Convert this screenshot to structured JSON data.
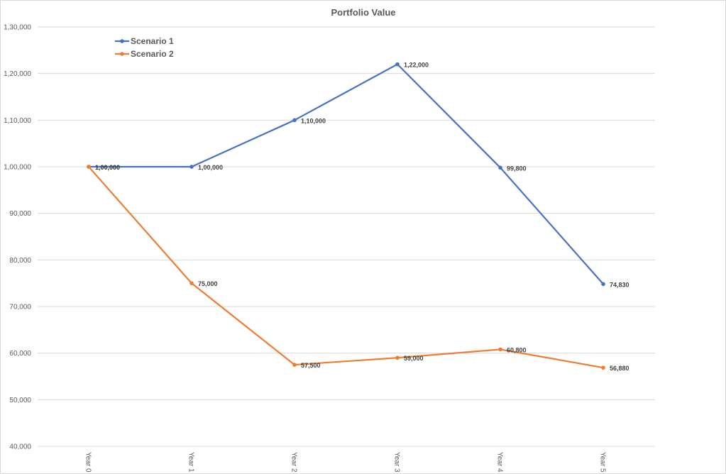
{
  "chart_data": {
    "type": "line",
    "title": "Portfolio Value",
    "xlabel": "",
    "ylabel": "",
    "categories": [
      "Year 0",
      "Year 1",
      "Year 2",
      "Year 3",
      "Year 4",
      "Year 5"
    ],
    "series": [
      {
        "name": "Scenario 1",
        "color": "#4472C4",
        "values": [
          100000,
          100000,
          110000,
          122000,
          99800,
          74830
        ],
        "labels": [
          "1,00,000",
          "1,00,000",
          "1,10,000",
          "1,22,000",
          "99,800",
          "74,830"
        ]
      },
      {
        "name": "Scenario 2",
        "color": "#ED7D31",
        "values": [
          100000,
          75000,
          57500,
          59000,
          60800,
          56880
        ],
        "labels": [
          "1,00,000",
          "75,000",
          "57,500",
          "59,000",
          "60,800",
          "56,880"
        ]
      }
    ],
    "ylim": [
      40000,
      130000
    ],
    "yticks": [
      40000,
      50000,
      60000,
      70000,
      80000,
      90000,
      100000,
      110000,
      120000,
      130000
    ],
    "ytick_labels": [
      "40,000",
      "50,000",
      "60,000",
      "70,000",
      "80,000",
      "90,000",
      "1,00,000",
      "1,10,000",
      "1,20,000",
      "1,30,000"
    ],
    "grid": true,
    "legend_position": "top-left"
  }
}
